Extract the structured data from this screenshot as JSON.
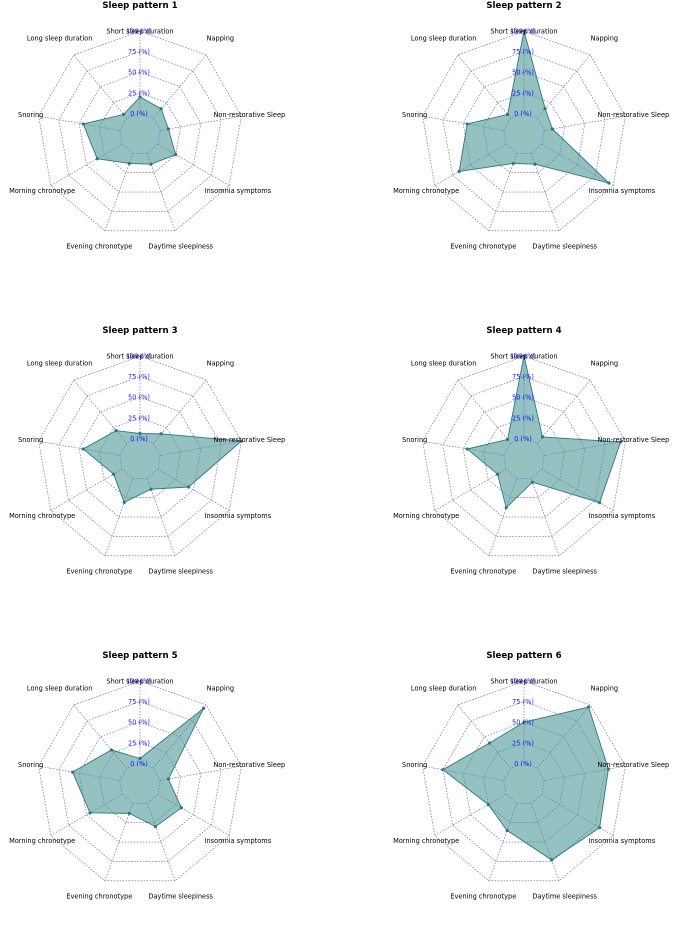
{
  "figure": {
    "background": "#ffffff",
    "fill_color": "#4a9595",
    "line_color": "#2f7878",
    "grid_color": "#3a3ab8",
    "tick_color": "#1a1aff"
  },
  "chart_data": [
    {
      "type": "radar",
      "title": "Sleep pattern 1",
      "axes": [
        "Short sleep duration",
        "Napping",
        "Non-restorative Sleep",
        "Insomnia symptoms",
        "Daytime sleepiness",
        "Evening chronotype",
        "Morning chronotype",
        "Snoring",
        "Long sleep duration"
      ],
      "values": [
        20,
        15,
        10,
        25,
        14,
        13,
        35,
        45,
        6
      ],
      "ticks": [
        "0 (%)",
        "25 (%)",
        "50 (%)",
        "75 (%)",
        "100 (%)"
      ],
      "rlim": [
        0,
        100
      ]
    },
    {
      "type": "radar",
      "title": "Sleep pattern 2",
      "axes": [
        "Short sleep duration",
        "Napping",
        "Non-restorative Sleep",
        "Insomnia symptoms",
        "Daytime sleepiness",
        "Evening chronotype",
        "Morning chronotype",
        "Snoring",
        "Long sleep duration"
      ],
      "values": [
        100,
        15,
        10,
        94,
        14,
        13,
        66,
        45,
        6
      ],
      "ticks": [
        "0 (%)",
        "25 (%)",
        "50 (%)",
        "75 (%)",
        "100 (%)"
      ],
      "rlim": [
        0,
        100
      ]
    },
    {
      "type": "radar",
      "title": "Sleep pattern 3",
      "axes": [
        "Short sleep duration",
        "Napping",
        "Non-restorative Sleep",
        "Insomnia symptoms",
        "Daytime sleepiness",
        "Evening chronotype",
        "Morning chronotype",
        "Snoring",
        "Long sleep duration"
      ],
      "values": [
        6,
        15,
        100,
        43,
        14,
        31,
        12,
        45,
        20
      ],
      "ticks": [
        "0 (%)",
        "25 (%)",
        "50 (%)",
        "75 (%)",
        "100 (%)"
      ],
      "rlim": [
        0,
        100
      ]
    },
    {
      "type": "radar",
      "title": "Sleep pattern 4",
      "axes": [
        "Short sleep duration",
        "Napping",
        "Non-restorative Sleep",
        "Insomnia symptoms",
        "Daytime sleepiness",
        "Evening chronotype",
        "Morning chronotype",
        "Snoring",
        "Long sleep duration"
      ],
      "values": [
        100,
        10,
        94,
        81,
        5,
        38,
        12,
        45,
        6
      ],
      "ticks": [
        "0 (%)",
        "25 (%)",
        "50 (%)",
        "75 (%)",
        "100 (%)"
      ],
      "rlim": [
        0,
        100
      ]
    },
    {
      "type": "radar",
      "title": "Sleep pattern 5",
      "axes": [
        "Short sleep duration",
        "Napping",
        "Non-restorative Sleep",
        "Insomnia symptoms",
        "Daytime sleepiness",
        "Evening chronotype",
        "Morning chronotype",
        "Snoring",
        "Long sleep duration"
      ],
      "values": [
        6,
        95,
        10,
        33,
        30,
        13,
        45,
        58,
        29
      ],
      "ticks": [
        "0 (%)",
        "25 (%)",
        "50 (%)",
        "75 (%)",
        "100 (%)"
      ],
      "rlim": [
        0,
        100
      ]
    },
    {
      "type": "radar",
      "title": "Sleep pattern 6",
      "axes": [
        "Short sleep duration",
        "Napping",
        "Non-restorative Sleep",
        "Insomnia symptoms",
        "Daytime sleepiness",
        "Evening chronotype",
        "Morning chronotype",
        "Snoring",
        "Long sleep duration"
      ],
      "values": [
        50,
        97,
        79,
        81,
        73,
        35,
        25,
        75,
        40
      ],
      "ticks": [
        "0 (%)",
        "25 (%)",
        "50 (%)",
        "75 (%)",
        "100 (%)"
      ],
      "rlim": [
        0,
        100
      ]
    }
  ]
}
